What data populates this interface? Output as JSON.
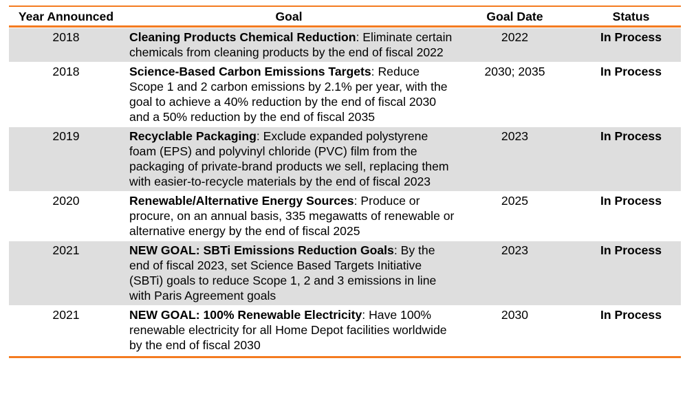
{
  "table": {
    "headers": {
      "year": "Year Announced",
      "goal": "Goal",
      "date": "Goal Date",
      "status": "Status"
    },
    "rows": [
      {
        "year": "2018",
        "goal_title": "Cleaning Products Chemical Reduction",
        "goal_text": ": Eliminate certain chemicals from cleaning products by the end of fiscal 2022",
        "date": "2022",
        "status": "In Process"
      },
      {
        "year": "2018",
        "goal_title": "Science-Based Carbon Emissions Targets",
        "goal_text": ": Reduce Scope 1 and 2 carbon emissions by 2.1% per year, with the goal to achieve a 40% reduction by the end of fiscal 2030 and a 50% reduction by the end of fiscal 2035",
        "date": "2030; 2035",
        "status": "In Process"
      },
      {
        "year": "2019",
        "goal_title": "Recyclable Packaging",
        "goal_text": ": Exclude expanded polystyrene foam (EPS) and polyvinyl chloride (PVC) film from the packaging of private-brand products we sell, replacing them with easier-to-recycle materials by the end of fiscal 2023",
        "date": "2023",
        "status": "In Process"
      },
      {
        "year": "2020",
        "goal_title": "Renewable/Alternative Energy Sources",
        "goal_text": ": Produce or procure, on an annual basis, 335 megawatts of renewable or alternative energy by the end of fiscal 2025",
        "date": "2025",
        "status": "In Process"
      },
      {
        "year": "2021",
        "goal_title": "NEW GOAL: SBTi Emissions Reduction Goals",
        "goal_text": ": By the end of fiscal 2023, set Science Based Targets Initiative (SBTi) goals to reduce Scope 1, 2 and 3 emissions in line with Paris Agreement goals",
        "date": "2023",
        "status": "In Process"
      },
      {
        "year": "2021",
        "goal_title": "NEW GOAL: 100% Renewable Electricity",
        "goal_text": ": Have 100% renewable electricity for all Home Depot facilities worldwide by the end of fiscal 2030",
        "date": "2030",
        "status": "In Process"
      }
    ]
  },
  "colors": {
    "rule": "#f47b20",
    "shade": "#dedede"
  }
}
